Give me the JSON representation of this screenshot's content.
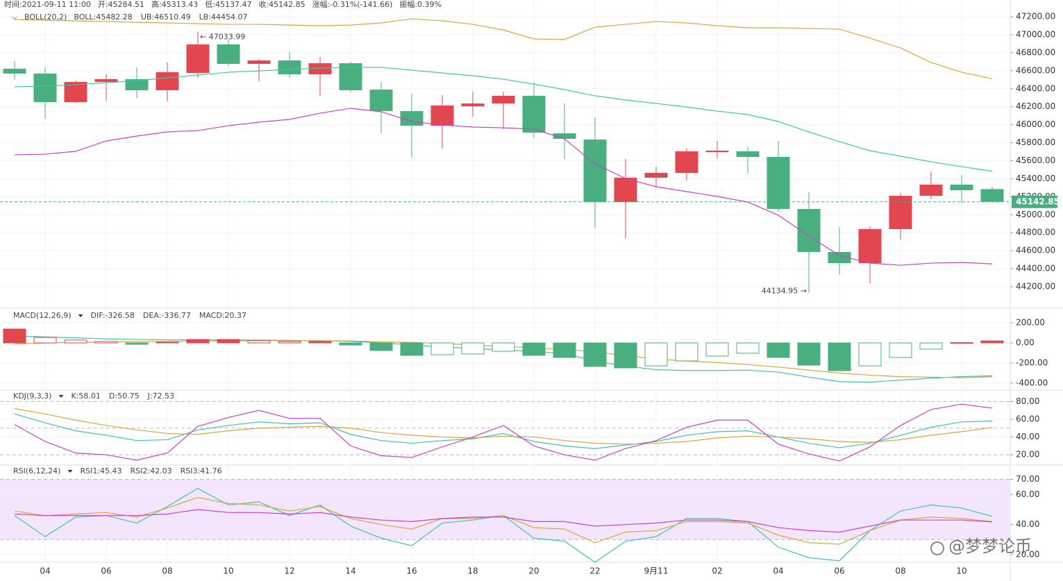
{
  "watermark": "@梦梦论币",
  "chart_data": [
    {
      "type": "candlestick",
      "title": "BOLL(20,2)",
      "info": [
        "时间:2021-09-11 11:00",
        "开:45284.51",
        "高:45313.43",
        "低:45137.47",
        "收:45142.85",
        "涨幅:-0.31%(-141.66)",
        "振幅:0.39%"
      ],
      "categories": [
        null,
        "04",
        null,
        "06",
        null,
        "08",
        null,
        "10",
        null,
        "12",
        null,
        "14",
        null,
        "16",
        null,
        "18",
        null,
        "20",
        null,
        "22",
        null,
        "9月11",
        null,
        "02",
        null,
        "04",
        null,
        "06",
        null,
        "08",
        null,
        "10",
        null
      ],
      "open": [
        46622,
        46568,
        46251,
        46475,
        46506,
        46383,
        46575,
        46892,
        46676,
        46714,
        46560,
        46683,
        46390,
        46151,
        45989,
        46205,
        46236,
        46321,
        45904,
        45835,
        45141,
        45411,
        45465,
        45696,
        45704,
        45642,
        45064,
        44586,
        44462,
        44840,
        45210,
        45334,
        45284.51
      ],
      "high": [
        46706,
        46637,
        46490,
        46560,
        46637,
        46691,
        47033.99,
        46946,
        46730,
        46807,
        46753,
        46699,
        46475,
        46344,
        46329,
        46367,
        46367,
        46467,
        46236,
        46082,
        45619,
        45534,
        45735,
        45820,
        45750,
        45820,
        45249,
        44863,
        44871,
        45241,
        45480,
        45442,
        45313.43
      ],
      "low": [
        46498,
        46066,
        46244,
        46267,
        46298,
        46259,
        46521,
        46652,
        46483,
        46521,
        46321,
        46359,
        45904,
        45634,
        45735,
        46089,
        45951,
        45850,
        45619,
        44856,
        44740,
        45303,
        45380,
        45627,
        45457,
        45033,
        44134.95,
        44339,
        44239,
        44724,
        45172,
        45133,
        45137.47
      ],
      "close": [
        46568,
        46251,
        46475,
        46506,
        46383,
        46583,
        46892,
        46676,
        46714,
        46560,
        46683,
        46383,
        46151,
        45989,
        46213,
        46236,
        46321,
        45912,
        45843,
        45141,
        45411,
        45465,
        45704,
        45712,
        45642,
        45064,
        44586,
        44462,
        44840,
        45210,
        45334,
        45272,
        45142.85
      ],
      "up_color": "#e2464f",
      "down_color": "#4aaf7f",
      "max_label": "← 47033.99",
      "min_label": "44134.95 →",
      "series": [
        {
          "name": "BOLL:45482.28",
          "color": "#3cc4b0",
          "values": [
            46421,
            46429,
            46444,
            46467,
            46490,
            46521,
            46552,
            46583,
            46598,
            46614,
            46629,
            46637,
            46637,
            46606,
            46575,
            46544,
            46506,
            46452,
            46390,
            46321,
            46275,
            46236,
            46197,
            46151,
            46113,
            46036,
            45920,
            45812,
            45711,
            45650,
            45588,
            45534,
            45482.28
          ]
        },
        {
          "name": "UB:46510.49",
          "color": "#d4a73a",
          "values": [
            47169,
            47161,
            47154,
            47146,
            47138,
            47131,
            47123,
            47115,
            47115,
            47107,
            47100,
            47107,
            47131,
            47177,
            47154,
            47115,
            47053,
            46953,
            46946,
            47084,
            47115,
            47146,
            47131,
            47100,
            47077,
            47077,
            47069,
            47061,
            46961,
            46853,
            46691,
            46583,
            46510.49
          ]
        },
        {
          "name": "LB:44454.07",
          "color": "#cf3fc6",
          "values": [
            45665,
            45673,
            45704,
            45820,
            45874,
            45920,
            45935,
            45989,
            46028,
            46059,
            46128,
            46182,
            46144,
            46036,
            45997,
            45974,
            45966,
            45951,
            45843,
            45565,
            45403,
            45311,
            45257,
            45203,
            45141,
            44995,
            44763,
            44547,
            44462,
            44439,
            44462,
            44470,
            44454.07
          ]
        }
      ],
      "ylim": [
        43992,
        47293
      ],
      "yticks": [
        {
          "value": 44200,
          "label": "44200.00"
        },
        {
          "value": 44400,
          "label": "44400.00"
        },
        {
          "value": 44600,
          "label": "44600.00"
        },
        {
          "value": 44800,
          "label": "44800.00"
        },
        {
          "value": 45000,
          "label": "45000.00"
        },
        {
          "value": 45200,
          "label": "45200.00"
        },
        {
          "value": 45400,
          "label": "45400.00"
        },
        {
          "value": 45600,
          "label": "45600.00"
        },
        {
          "value": 45800,
          "label": "45800.00"
        },
        {
          "value": 46000,
          "label": "46000.00"
        },
        {
          "value": 46200,
          "label": "46200.00"
        },
        {
          "value": 46400,
          "label": "46400.00"
        },
        {
          "value": 46600,
          "label": "46600.00"
        },
        {
          "value": 46800,
          "label": "46800.00"
        },
        {
          "value": 47000,
          "label": "47000.00"
        },
        {
          "value": 47200,
          "label": "47200.00"
        }
      ]
    },
    {
      "type": "macd",
      "title": "MACD(12,26,9)",
      "series": [
        {
          "name": "DIF:-326.58",
          "color": "#3cc4b0",
          "values": [
            70,
            60,
            50,
            40,
            35,
            30,
            30,
            30,
            28,
            25,
            22,
            15,
            0,
            -20,
            -40,
            -55,
            -70,
            -85,
            -105,
            -180,
            -230,
            -265,
            -275,
            -275,
            -270,
            -290,
            -340,
            -385,
            -390,
            -370,
            -350,
            -335,
            -326.58
          ]
        },
        {
          "name": "DEA:-336.77",
          "color": "#d4a73a",
          "values": [
            -10,
            0,
            5,
            10,
            12,
            15,
            18,
            20,
            22,
            22,
            22,
            20,
            10,
            5,
            -5,
            -20,
            -35,
            -50,
            -65,
            -90,
            -125,
            -160,
            -180,
            -195,
            -215,
            -240,
            -270,
            -300,
            -320,
            -335,
            -340,
            -345,
            -336.77
          ]
        },
        {
          "name": "MACD:20.37",
          "color": "#e2464f",
          "kind": "bar",
          "values": [
            138,
            55,
            28,
            14,
            -14,
            7,
            34,
            34,
            21,
            14,
            14,
            -21,
            -76,
            -124,
            -117,
            -110,
            -83,
            -124,
            -145,
            -234,
            -248,
            -228,
            -179,
            -131,
            -103,
            -145,
            -221,
            -276,
            -228,
            -145,
            -62,
            3,
            20.37
          ]
        }
      ],
      "up_color": "#e2464f",
      "down_color": "#4aaf7f",
      "ylim": [
        -455,
        324
      ],
      "yticks": [
        {
          "value": 200,
          "label": "200.00"
        },
        {
          "value": 0,
          "label": "0.00"
        },
        {
          "value": -200,
          "label": "-200.00"
        },
        {
          "value": -400,
          "label": "-400.00"
        }
      ]
    },
    {
      "type": "line",
      "title": "KDJ(9,3,3)",
      "series": [
        {
          "name": "K:58.01",
          "color": "#3cc4b0",
          "values": [
            66,
            56,
            47,
            42,
            36,
            37,
            48,
            53,
            57,
            55,
            56,
            43,
            36,
            33,
            36,
            38,
            44,
            35,
            30,
            27,
            31,
            35,
            42,
            46,
            47,
            40,
            33,
            28,
            33,
            42,
            51,
            57,
            58.01
          ]
        },
        {
          "name": "D:50.75",
          "color": "#d4a73a",
          "values": [
            72,
            66,
            59,
            53,
            48,
            44,
            43,
            47,
            50,
            51,
            52,
            50,
            45,
            42,
            40,
            39,
            41,
            40,
            36,
            33,
            32,
            33,
            35,
            39,
            41,
            40,
            38,
            35,
            34,
            37,
            42,
            46,
            50.75
          ]
        },
        {
          "name": "J:72.53",
          "color": "#cf3fc6",
          "values": [
            54,
            35,
            22,
            20,
            14,
            22,
            52,
            62,
            70,
            61,
            61,
            30,
            19,
            17,
            29,
            40,
            53,
            30,
            20,
            14,
            27,
            36,
            51,
            59,
            59,
            32,
            21,
            13,
            29,
            53,
            71,
            77,
            72.53
          ]
        }
      ],
      "reference_lines": [
        80,
        50,
        20
      ],
      "ylim": [
        10,
        92
      ],
      "yticks": [
        {
          "value": 80,
          "label": "80.00"
        },
        {
          "value": 60,
          "label": "60.00"
        },
        {
          "value": 40,
          "label": "40.00"
        },
        {
          "value": 20,
          "label": "20.00"
        }
      ]
    },
    {
      "type": "line",
      "title": "RSI(6,12,24)",
      "series": [
        {
          "name": "RSI1:45.43",
          "color": "#3cc4b0",
          "values": [
            46,
            32,
            45,
            46,
            41,
            52,
            64,
            53,
            55,
            46,
            53,
            39,
            31,
            26,
            41,
            43,
            46,
            31,
            29,
            15,
            29,
            32,
            44,
            44,
            42,
            25,
            18,
            16,
            36,
            49,
            53,
            51,
            45.43
          ]
        },
        {
          "name": "RSI2:42.03",
          "color": "#d4a73a",
          "values": [
            49,
            46,
            47,
            48,
            45,
            51,
            58,
            54,
            53,
            49,
            52,
            44,
            40,
            37,
            44,
            44,
            46,
            38,
            37,
            28,
            35,
            36,
            42,
            42,
            41,
            33,
            28,
            27,
            36,
            43,
            45,
            44,
            42.03
          ]
        },
        {
          "name": "RSI3:41.76",
          "color": "#cf3fc6",
          "values": [
            47,
            46,
            46,
            46,
            46,
            47,
            50,
            48,
            48,
            47,
            48,
            45,
            43,
            42,
            44,
            45,
            45,
            42,
            42,
            39,
            40,
            41,
            43,
            43,
            42,
            38,
            36,
            35,
            39,
            43,
            43,
            43,
            41.76
          ]
        }
      ],
      "band": [
        30,
        70
      ],
      "band_color": "#f3e5fb",
      "reference_lines": [
        70,
        30
      ],
      "ylim": [
        15,
        79
      ],
      "yticks": [
        {
          "value": 70,
          "label": "70.00"
        },
        {
          "value": 60,
          "label": "60.00"
        },
        {
          "value": 40,
          "label": "40.00"
        },
        {
          "value": 20,
          "label": "20.00"
        }
      ]
    }
  ]
}
